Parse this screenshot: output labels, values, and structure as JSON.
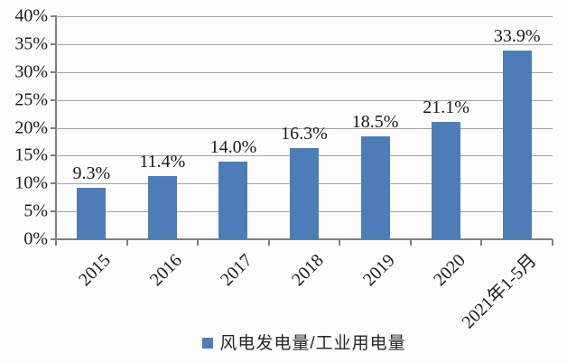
{
  "chart_data": {
    "type": "bar",
    "categories": [
      "2015",
      "2016",
      "2017",
      "2018",
      "2019",
      "2020",
      "2021年1-5月"
    ],
    "values": [
      9.3,
      11.4,
      14.0,
      16.3,
      18.5,
      21.1,
      33.9
    ],
    "data_labels": [
      "9.3%",
      "11.4%",
      "14.0%",
      "16.3%",
      "18.5%",
      "21.1%",
      "33.9%"
    ],
    "title": "",
    "xlabel": "",
    "ylabel": "",
    "ylim": [
      0,
      40
    ],
    "ytick_step": 5,
    "ytick_labels": [
      "0%",
      "5%",
      "10%",
      "15%",
      "20%",
      "25%",
      "30%",
      "35%",
      "40%"
    ],
    "grid": true,
    "legend": {
      "position": "bottom",
      "entries": [
        "风电发电量/工业用电量"
      ]
    },
    "colors": {
      "bar": "#4C7DB8",
      "gridline": "#a3a3a3",
      "axis": "#7f7f7f",
      "text": "#1a1a1a",
      "background": "#fdfdfd"
    }
  }
}
